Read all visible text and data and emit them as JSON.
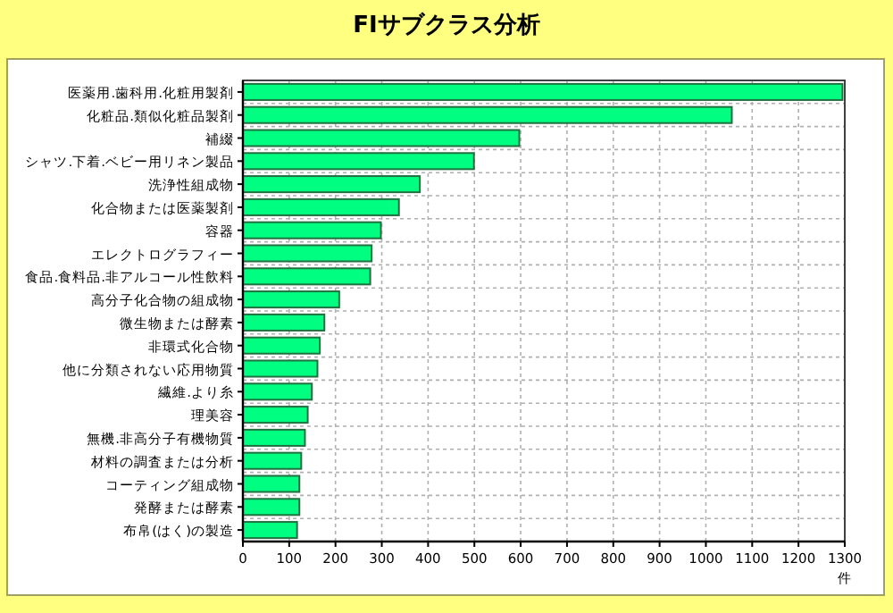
{
  "chart_data": {
    "type": "bar",
    "orientation": "horizontal",
    "title": "FIサブクラス分析",
    "xlabel": "件",
    "categories": [
      "医薬用.歯科用.化粧用製剤",
      "化粧品.類似化粧品製剤",
      "補綴",
      "シャツ.下着.ベビー用リネン製品",
      "洗浄性組成物",
      "化合物または医薬製剤",
      "容器",
      "エレクトログラフィー",
      "食品.食料品.非アルコール性飲料",
      "高分子化合物の組成物",
      "微生物または酵素",
      "非環式化合物",
      "他に分類されない応用物質",
      "繊維.より糸",
      "理美容",
      "無機.非高分子有機物質",
      "材料の調査または分析",
      "コーティング組成物",
      "発酵または酵素",
      "布帛(はく)の製造"
    ],
    "values": [
      1295,
      1056,
      597,
      499,
      382,
      337,
      298,
      278,
      275,
      208,
      176,
      166,
      161,
      149,
      140,
      134,
      126,
      122,
      122,
      117
    ],
    "color": "#00ff80",
    "xlim": [
      0,
      1300
    ],
    "xticks": [
      0,
      100,
      200,
      300,
      400,
      500,
      600,
      700,
      800,
      900,
      1000,
      1100,
      1200,
      1300
    ],
    "grid": true
  }
}
